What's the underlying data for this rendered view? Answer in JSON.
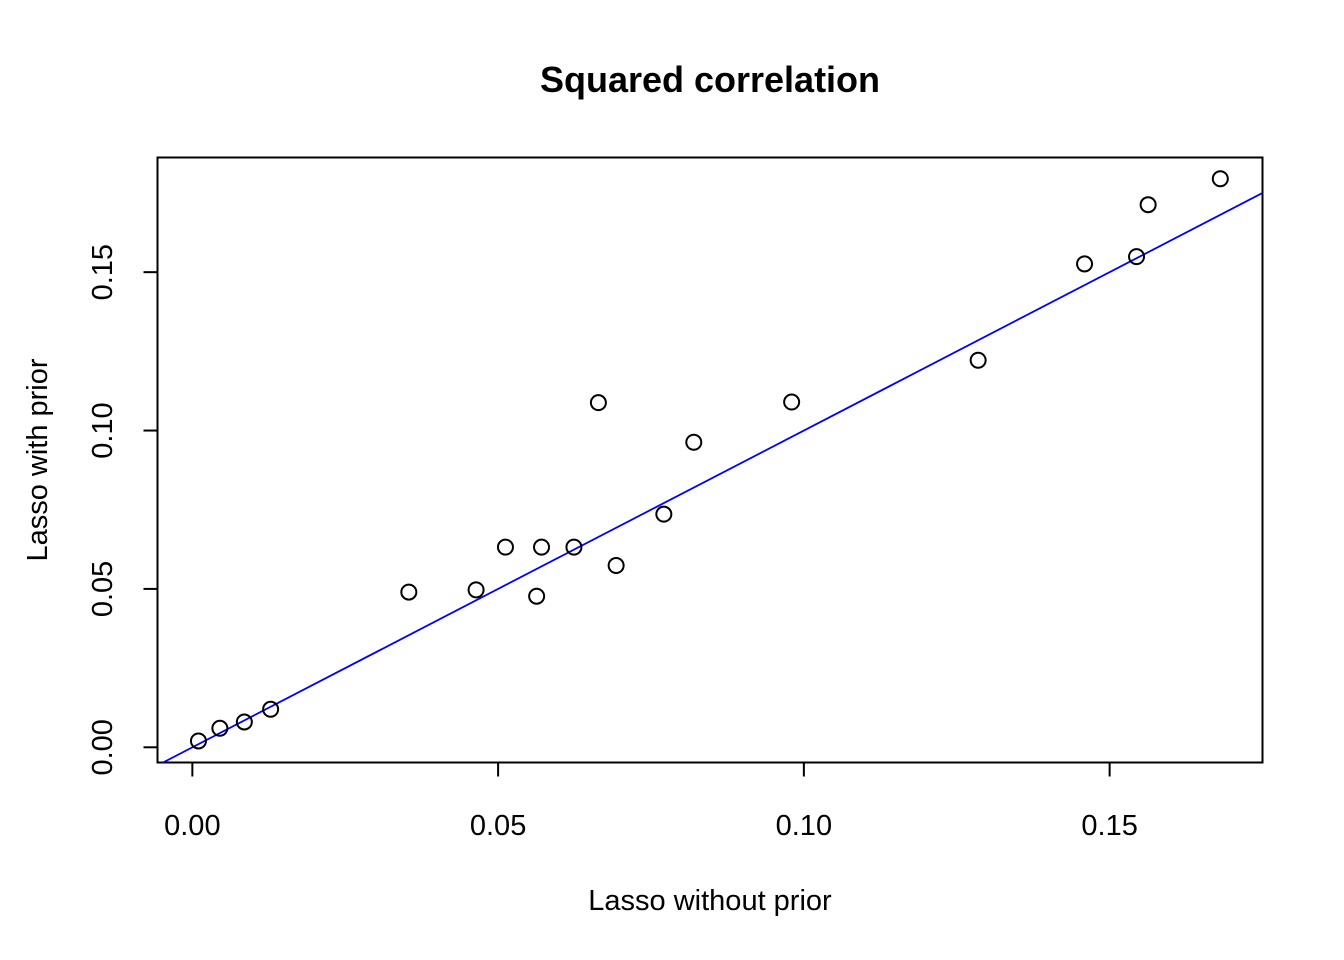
{
  "chart_data": {
    "type": "scatter",
    "title": "Squared correlation",
    "xlabel": "Lasso without prior",
    "ylabel": "Lasso with prior",
    "xlim": [
      -0.0057,
      0.175
    ],
    "ylim": [
      -0.0048,
      0.1862
    ],
    "xticks": [
      "0.00",
      "0.05",
      "0.10",
      "0.15"
    ],
    "yticks": [
      "0.00",
      "0.05",
      "0.10",
      "0.15"
    ],
    "grid": false,
    "legend": "none",
    "marker": "open-circle",
    "series": [
      {
        "points": [
          {
            "x": 0.001,
            "y": 0.002
          },
          {
            "x": 0.0045,
            "y": 0.006
          },
          {
            "x": 0.0085,
            "y": 0.008
          },
          {
            "x": 0.0128,
            "y": 0.012
          },
          {
            "x": 0.0354,
            "y": 0.049
          },
          {
            "x": 0.0464,
            "y": 0.0497
          },
          {
            "x": 0.0512,
            "y": 0.0632
          },
          {
            "x": 0.0563,
            "y": 0.0477
          },
          {
            "x": 0.0571,
            "y": 0.0632
          },
          {
            "x": 0.0624,
            "y": 0.0632
          },
          {
            "x": 0.0664,
            "y": 0.1088
          },
          {
            "x": 0.0693,
            "y": 0.0574
          },
          {
            "x": 0.0771,
            "y": 0.0736
          },
          {
            "x": 0.082,
            "y": 0.0963
          },
          {
            "x": 0.098,
            "y": 0.109
          },
          {
            "x": 0.1285,
            "y": 0.1222
          },
          {
            "x": 0.1459,
            "y": 0.1526
          },
          {
            "x": 0.1544,
            "y": 0.1549
          },
          {
            "x": 0.1563,
            "y": 0.1713
          },
          {
            "x": 0.1681,
            "y": 0.1795
          }
        ]
      }
    ],
    "reference_line": {
      "kind": "y = x",
      "intercept": 0,
      "slope": 1,
      "color": "#0000ff"
    },
    "colors": {
      "points": "#000000",
      "line": "#0000ff",
      "frame": "#000000",
      "background": "#ffffff"
    }
  }
}
